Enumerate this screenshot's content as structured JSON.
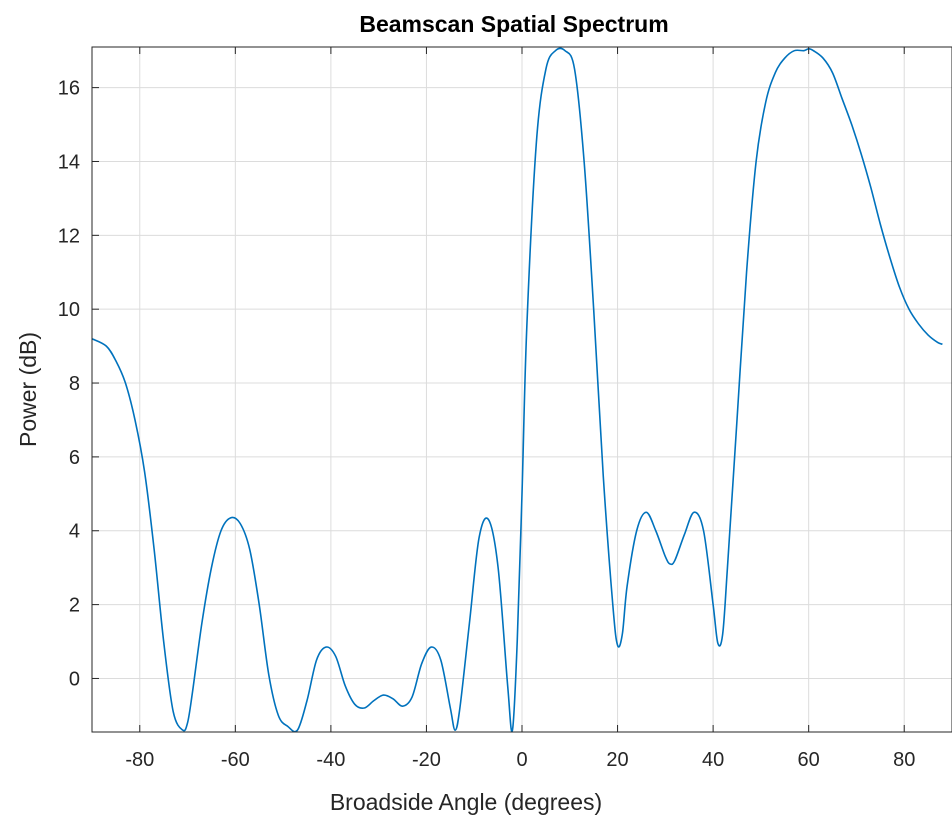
{
  "chart_data": {
    "type": "line",
    "title": "Beamscan Spatial Spectrum",
    "xlabel": "Broadside Angle (degrees)",
    "ylabel": "Power (dB)",
    "xlim": [
      -90,
      90
    ],
    "ylim": [
      -1.45,
      17.1
    ],
    "xticks": [
      -80,
      -60,
      -40,
      -20,
      0,
      20,
      40,
      60,
      80
    ],
    "yticks": [
      0,
      2,
      4,
      6,
      8,
      10,
      12,
      14,
      16
    ],
    "grid": true,
    "line_color": "#0072BD",
    "series": [
      {
        "x": [
          -90,
          -87,
          -85,
          -83,
          -81,
          -79,
          -77,
          -75,
          -73,
          -71,
          -70,
          -69,
          -67,
          -65,
          -63,
          -61,
          -59,
          -57,
          -55,
          -53,
          -51,
          -49,
          -47,
          -45,
          -43,
          -41,
          -39,
          -37,
          -35,
          -33,
          -31,
          -29,
          -27,
          -25,
          -23,
          -21,
          -19,
          -17,
          -15,
          -14,
          -13,
          -11,
          -9,
          -7,
          -5,
          -3,
          -2,
          -1,
          0,
          1,
          3,
          5,
          7,
          9,
          11,
          13,
          15,
          17,
          19,
          20,
          21,
          22,
          24,
          26,
          28,
          30,
          31,
          32,
          34,
          36,
          38,
          40,
          41,
          42,
          43,
          45,
          47,
          49,
          51,
          53,
          55,
          57,
          59,
          60,
          61,
          63,
          65,
          67,
          69,
          71,
          73,
          75,
          77,
          79,
          81,
          83,
          85,
          87,
          88
        ],
        "y": [
          9.2,
          9.0,
          8.6,
          8.0,
          7.0,
          5.6,
          3.5,
          1.0,
          -0.9,
          -1.4,
          -1.2,
          -0.4,
          1.5,
          3.0,
          4.0,
          4.35,
          4.2,
          3.5,
          2.0,
          0.1,
          -1.0,
          -1.3,
          -1.4,
          -0.6,
          0.5,
          0.85,
          0.6,
          -0.2,
          -0.7,
          -0.8,
          -0.6,
          -0.45,
          -0.55,
          -0.75,
          -0.5,
          0.4,
          0.85,
          0.5,
          -0.8,
          -1.4,
          -0.8,
          1.5,
          3.8,
          4.3,
          3.0,
          -0.2,
          -1.4,
          1.0,
          5.0,
          9.5,
          14.5,
          16.5,
          17.0,
          17.0,
          16.5,
          14.0,
          10.0,
          5.5,
          2.0,
          0.9,
          1.2,
          2.5,
          4.0,
          4.5,
          4.0,
          3.3,
          3.1,
          3.2,
          3.9,
          4.5,
          4.0,
          2.0,
          0.95,
          1.2,
          3.0,
          7.0,
          11.0,
          14.0,
          15.6,
          16.4,
          16.8,
          17.0,
          17.0,
          17.05,
          17.0,
          16.8,
          16.4,
          15.7,
          15.0,
          14.2,
          13.3,
          12.3,
          11.4,
          10.6,
          10.0,
          9.6,
          9.3,
          9.1,
          9.05
        ]
      }
    ]
  }
}
